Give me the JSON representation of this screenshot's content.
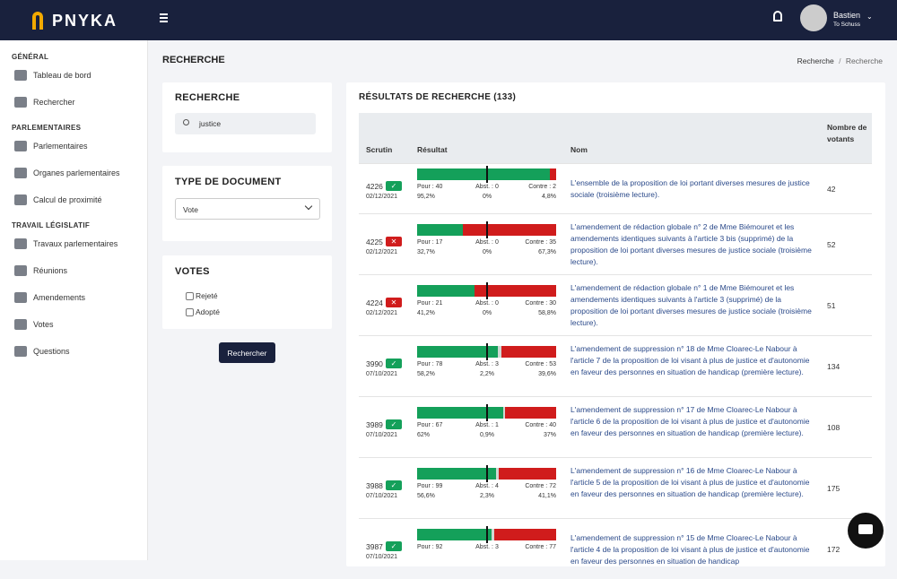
{
  "topbar": {
    "logo": "PNYKA",
    "user_name": "Bastien",
    "user_group": "To Schuss"
  },
  "sidebar": {
    "sections": [
      {
        "title": "GÉNÉRAL",
        "items": [
          "Tableau de bord",
          "Rechercher"
        ]
      },
      {
        "title": "PARLEMENTAIRES",
        "items": [
          "Parlementaires",
          "Organes parlementaires",
          "Calcul de proximité"
        ]
      },
      {
        "title": "TRAVAIL LÉGISLATIF",
        "items": [
          "Travaux parlementaires",
          "Réunions",
          "Amendements",
          "Votes",
          "Questions"
        ]
      }
    ]
  },
  "page": {
    "title": "RECHERCHE",
    "breadcrumb": [
      "Recherche",
      "Recherche"
    ],
    "breadcrumb_separator": "/"
  },
  "filters": {
    "search": {
      "title": "RECHERCHE",
      "value": "justice"
    },
    "document_type": {
      "title": "TYPE DE DOCUMENT",
      "value": "Vote"
    },
    "votes": {
      "title": "VOTES",
      "options": [
        "Rejeté",
        "Adopté"
      ]
    },
    "button": "Rechercher"
  },
  "results": {
    "title": "RÉSULTATS DE RECHERCHE (133)",
    "columns": [
      "Scrutin",
      "Résultat",
      "Nom",
      "Nombre de votants"
    ],
    "labels": {
      "pour": "Pour :",
      "abst": "Abst. :",
      "contre": "Contre :"
    },
    "rows": [
      {
        "scrutin": 4226,
        "status": "adopted",
        "date": "02/12/2021",
        "pour": 40,
        "abst": 0,
        "contre": 2,
        "pour_pct": "95,2%",
        "abst_pct": "0%",
        "contre_pct": "4,8%",
        "nom": "L'ensemble de la proposition de loi portant diverses mesures de justice sociale (troisième lecture).",
        "votants": 42
      },
      {
        "scrutin": 4225,
        "status": "rejected",
        "date": "02/12/2021",
        "pour": 17,
        "abst": 0,
        "contre": 35,
        "pour_pct": "32,7%",
        "abst_pct": "0%",
        "contre_pct": "67,3%",
        "nom": "L'amendement de rédaction globale n° 2 de Mme Biémouret et les amendements identiques suivants à l'article 3 bis (supprimé) de la proposition de loi portant diverses mesures de justice sociale (troisième lecture).",
        "votants": 52
      },
      {
        "scrutin": 4224,
        "status": "rejected",
        "date": "02/12/2021",
        "pour": 21,
        "abst": 0,
        "contre": 30,
        "pour_pct": "41,2%",
        "abst_pct": "0%",
        "contre_pct": "58,8%",
        "nom": "L'amendement de rédaction globale n° 1 de Mme Biémouret et les amendements identiques suivants à l'article 3 (supprimé) de la proposition de loi portant diverses mesures de justice sociale (troisième lecture).",
        "votants": 51
      },
      {
        "scrutin": 3990,
        "status": "adopted",
        "date": "07/10/2021",
        "pour": 78,
        "abst": 3,
        "contre": 53,
        "pour_pct": "58,2%",
        "abst_pct": "2,2%",
        "contre_pct": "39,6%",
        "nom": "L'amendement de suppression n° 18 de Mme Cloarec-Le Nabour à l'article 7 de la proposition de loi visant à plus de justice et d'autonomie en faveur des personnes en situation de handicap (première lecture).",
        "votants": 134
      },
      {
        "scrutin": 3989,
        "status": "adopted",
        "date": "07/10/2021",
        "pour": 67,
        "abst": 1,
        "contre": 40,
        "pour_pct": "62%",
        "abst_pct": "0,9%",
        "contre_pct": "37%",
        "nom": "L'amendement de suppression n° 17 de Mme Cloarec-Le Nabour à l'article 6 de la proposition de loi visant à plus de justice et d'autonomie en faveur des personnes en situation de handicap (première lecture).",
        "votants": 108
      },
      {
        "scrutin": 3988,
        "status": "adopted",
        "date": "07/10/2021",
        "pour": 99,
        "abst": 4,
        "contre": 72,
        "pour_pct": "56,6%",
        "abst_pct": "2,3%",
        "contre_pct": "41,1%",
        "nom": "L'amendement de suppression n° 16 de Mme Cloarec-Le Nabour à l'article 5 de la proposition de loi visant à plus de justice et d'autonomie en faveur des personnes en situation de handicap (première lecture).",
        "votants": 175
      },
      {
        "scrutin": 3987,
        "status": "adopted",
        "date": "07/10/2021",
        "pour": 92,
        "abst": 3,
        "contre": 77,
        "nom": "L'amendement de suppression n° 15 de Mme Cloarec-Le Nabour à l'article 4 de la proposition de loi visant à plus de justice et d'autonomie en faveur des personnes en situation de handicap",
        "votants": 172
      }
    ]
  }
}
